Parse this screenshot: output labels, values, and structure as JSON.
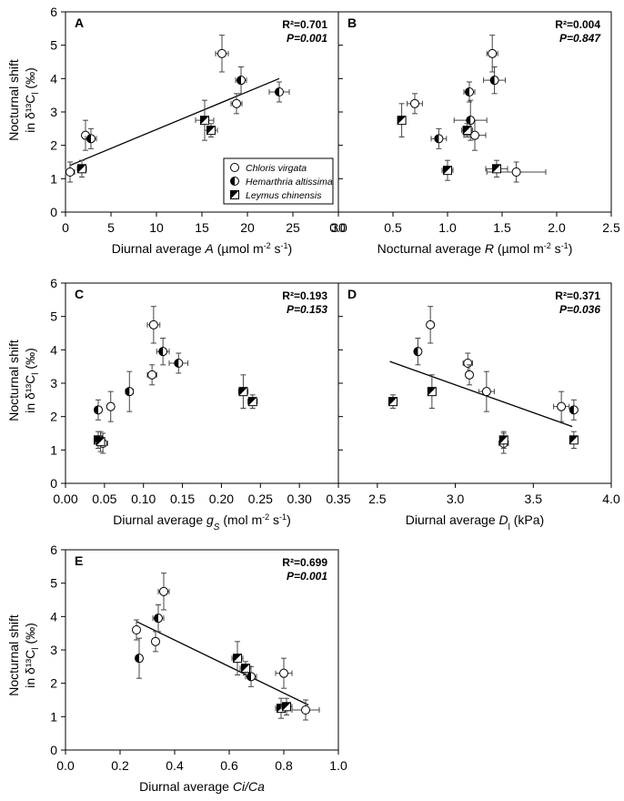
{
  "figure": {
    "legend": {
      "entries": [
        {
          "name": "Chloris virgata",
          "marker": "open-circle"
        },
        {
          "name": "Hemarthria altissima",
          "marker": "half-filled-circle"
        },
        {
          "name": "Leymus chinensis",
          "marker": "half-filled-square"
        }
      ]
    },
    "ylabel_line1": "Nocturnal shift",
    "ylabel_line2": "in δ¹³C",
    "ylabel_sub": "l",
    "ylabel_unit": " (‰)"
  },
  "chart_data": [
    {
      "panel": "A",
      "type": "scatter",
      "xlabel": "Diurnal average A (µmol m⁻² s⁻¹)",
      "xlim": [
        0,
        30
      ],
      "ylim": [
        0,
        6
      ],
      "xticks": [
        0,
        5,
        10,
        15,
        20,
        25,
        30
      ],
      "yticks": [
        0,
        1,
        2,
        3,
        4,
        5,
        6
      ],
      "stats": {
        "r2": "R²=0.701",
        "p": "P=0.001"
      },
      "regression": {
        "x": [
          0.5,
          23.5
        ],
        "y": [
          1.4,
          4.0
        ]
      },
      "points": [
        {
          "species": "Chloris virgata",
          "x": 0.5,
          "y": 1.2,
          "xerr": 0.5,
          "yerr": 0.3
        },
        {
          "species": "Chloris virgata",
          "x": 2.2,
          "y": 2.3,
          "xerr": 0.3,
          "yerr": 0.45
        },
        {
          "species": "Chloris virgata",
          "x": 17.2,
          "y": 4.75,
          "xerr": 0.7,
          "yerr": 0.55
        },
        {
          "species": "Chloris virgata",
          "x": 18.8,
          "y": 3.25,
          "xerr": 0.6,
          "yerr": 0.3
        },
        {
          "species": "Hemarthria altissima",
          "x": 2.8,
          "y": 2.2,
          "xerr": 0.6,
          "yerr": 0.3
        },
        {
          "species": "Hemarthria altissima",
          "x": 19.3,
          "y": 3.95,
          "xerr": 0.6,
          "yerr": 0.4
        },
        {
          "species": "Hemarthria altissima",
          "x": 23.5,
          "y": 3.6,
          "xerr": 1.1,
          "yerr": 0.3
        },
        {
          "species": "Leymus chinensis",
          "x": 1.8,
          "y": 1.3,
          "xerr": 0.5,
          "yerr": 0.25
        },
        {
          "species": "Leymus chinensis",
          "x": 15.3,
          "y": 2.75,
          "xerr": 1.0,
          "yerr": 0.6
        },
        {
          "species": "Leymus chinensis",
          "x": 16.0,
          "y": 2.45,
          "xerr": 0.7,
          "yerr": 0.2
        }
      ]
    },
    {
      "panel": "B",
      "type": "scatter",
      "xlabel": "Nocturnal average R (µmol m⁻² s⁻¹)",
      "xlim": [
        0,
        2.5
      ],
      "ylim": [
        0,
        6
      ],
      "xticks": [
        0.0,
        0.5,
        1.0,
        1.5,
        2.0,
        2.5
      ],
      "yticks": [
        0,
        1,
        2,
        3,
        4,
        5,
        6
      ],
      "stats": {
        "r2": "R²=0.004",
        "p": "P=0.847"
      },
      "regression": null,
      "points": [
        {
          "species": "Chloris virgata",
          "x": 0.7,
          "y": 3.25,
          "xerr": 0.07,
          "yerr": 0.3
        },
        {
          "species": "Chloris virgata",
          "x": 1.25,
          "y": 2.3,
          "xerr": 0.1,
          "yerr": 0.45
        },
        {
          "species": "Chloris virgata",
          "x": 1.41,
          "y": 4.75,
          "xerr": 0.05,
          "yerr": 0.55
        },
        {
          "species": "Chloris virgata",
          "x": 1.63,
          "y": 1.2,
          "xerr": 0.27,
          "yerr": 0.3
        },
        {
          "species": "Hemarthria altissima",
          "x": 0.92,
          "y": 2.2,
          "xerr": 0.07,
          "yerr": 0.3
        },
        {
          "species": "Hemarthria altissima",
          "x": 1.2,
          "y": 3.6,
          "xerr": 0.05,
          "yerr": 0.3
        },
        {
          "species": "Hemarthria altissima",
          "x": 1.21,
          "y": 2.75,
          "xerr": 0.15,
          "yerr": 0.6
        },
        {
          "species": "Hemarthria altissima",
          "x": 1.43,
          "y": 3.95,
          "xerr": 0.1,
          "yerr": 0.4
        },
        {
          "species": "Leymus chinensis",
          "x": 0.58,
          "y": 2.75,
          "xerr": 0.03,
          "yerr": 0.5
        },
        {
          "species": "Leymus chinensis",
          "x": 1.0,
          "y": 1.25,
          "xerr": 0.05,
          "yerr": 0.3
        },
        {
          "species": "Leymus chinensis",
          "x": 1.18,
          "y": 2.45,
          "xerr": 0.05,
          "yerr": 0.2
        },
        {
          "species": "Leymus chinensis",
          "x": 1.45,
          "y": 1.3,
          "xerr": 0.1,
          "yerr": 0.25
        }
      ]
    },
    {
      "panel": "C",
      "type": "scatter",
      "xlabel": "Diurnal average gs (mol m⁻² s⁻¹)",
      "xlim": [
        0,
        0.35
      ],
      "ylim": [
        0,
        6
      ],
      "xticks": [
        0.0,
        0.05,
        0.1,
        0.15,
        0.2,
        0.25,
        0.3,
        0.35
      ],
      "yticks": [
        0,
        1,
        2,
        3,
        4,
        5,
        6
      ],
      "stats": {
        "r2": "R²=0.193",
        "p": "P=0.153"
      },
      "regression": null,
      "points": [
        {
          "species": "Chloris virgata",
          "x": 0.048,
          "y": 1.2,
          "xerr": 0.006,
          "yerr": 0.3
        },
        {
          "species": "Chloris virgata",
          "x": 0.058,
          "y": 2.3,
          "xerr": 0.004,
          "yerr": 0.45
        },
        {
          "species": "Chloris virgata",
          "x": 0.111,
          "y": 3.25,
          "xerr": 0.006,
          "yerr": 0.3
        },
        {
          "species": "Chloris virgata",
          "x": 0.113,
          "y": 4.75,
          "xerr": 0.008,
          "yerr": 0.55
        },
        {
          "species": "Hemarthria altissima",
          "x": 0.042,
          "y": 2.2,
          "xerr": 0.003,
          "yerr": 0.3
        },
        {
          "species": "Hemarthria altissima",
          "x": 0.082,
          "y": 2.75,
          "xerr": 0.005,
          "yerr": 0.6
        },
        {
          "species": "Hemarthria altissima",
          "x": 0.125,
          "y": 3.95,
          "xerr": 0.008,
          "yerr": 0.4
        },
        {
          "species": "Hemarthria altissima",
          "x": 0.145,
          "y": 3.6,
          "xerr": 0.012,
          "yerr": 0.3
        },
        {
          "species": "Leymus chinensis",
          "x": 0.042,
          "y": 1.3,
          "xerr": 0.004,
          "yerr": 0.25
        },
        {
          "species": "Leymus chinensis",
          "x": 0.045,
          "y": 1.25,
          "xerr": 0.004,
          "yerr": 0.3
        },
        {
          "species": "Leymus chinensis",
          "x": 0.228,
          "y": 2.75,
          "xerr": 0.006,
          "yerr": 0.5
        },
        {
          "species": "Leymus chinensis",
          "x": 0.24,
          "y": 2.45,
          "xerr": 0.006,
          "yerr": 0.2
        }
      ]
    },
    {
      "panel": "D",
      "type": "scatter",
      "xlabel": "Diurnal average Dl (kPa)",
      "xlim": [
        2.25,
        4.0
      ],
      "ylim": [
        0,
        6
      ],
      "xticks": [
        2.5,
        3.0,
        3.5,
        4.0
      ],
      "yticks": [
        0,
        1,
        2,
        3,
        4,
        5,
        6
      ],
      "stats": {
        "r2": "R²=0.371",
        "p": "P=0.036"
      },
      "regression": {
        "x": [
          2.58,
          3.75
        ],
        "y": [
          3.65,
          1.7
        ]
      },
      "points": [
        {
          "species": "Chloris virgata",
          "x": 2.84,
          "y": 4.75,
          "xerr": 0.02,
          "yerr": 0.55
        },
        {
          "species": "Chloris virgata",
          "x": 3.08,
          "y": 3.6,
          "xerr": 0.03,
          "yerr": 0.3
        },
        {
          "species": "Chloris virgata",
          "x": 3.09,
          "y": 3.25,
          "xerr": 0.02,
          "yerr": 0.3
        },
        {
          "species": "Chloris virgata",
          "x": 3.2,
          "y": 2.75,
          "xerr": 0.05,
          "yerr": 0.6
        },
        {
          "species": "Chloris virgata",
          "x": 3.68,
          "y": 2.3,
          "xerr": 0.05,
          "yerr": 0.45
        },
        {
          "species": "Chloris virgata",
          "x": 3.31,
          "y": 1.2,
          "xerr": 0.03,
          "yerr": 0.3
        },
        {
          "species": "Hemarthria altissima",
          "x": 2.76,
          "y": 3.95,
          "xerr": 0.02,
          "yerr": 0.4
        },
        {
          "species": "Hemarthria altissima",
          "x": 3.76,
          "y": 2.2,
          "xerr": 0.02,
          "yerr": 0.3
        },
        {
          "species": "Leymus chinensis",
          "x": 2.6,
          "y": 2.45,
          "xerr": 0.02,
          "yerr": 0.2
        },
        {
          "species": "Leymus chinensis",
          "x": 2.85,
          "y": 2.75,
          "xerr": 0.02,
          "yerr": 0.5
        },
        {
          "species": "Leymus chinensis",
          "x": 3.31,
          "y": 1.3,
          "xerr": 0.02,
          "yerr": 0.25
        },
        {
          "species": "Leymus chinensis",
          "x": 3.76,
          "y": 1.3,
          "xerr": 0.02,
          "yerr": 0.25
        }
      ]
    },
    {
      "panel": "E",
      "type": "scatter",
      "xlabel": "Diurnal average Ci/Ca",
      "xlim": [
        0,
        1.0
      ],
      "ylim": [
        0,
        6
      ],
      "xticks": [
        0.0,
        0.2,
        0.4,
        0.6,
        0.8,
        1.0
      ],
      "yticks": [
        0,
        1,
        2,
        3,
        4,
        5,
        6
      ],
      "stats": {
        "r2": "R²=0.699",
        "p": "P=0.001"
      },
      "regression": {
        "x": [
          0.26,
          0.89
        ],
        "y": [
          3.85,
          1.35
        ]
      },
      "points": [
        {
          "species": "Chloris virgata",
          "x": 0.26,
          "y": 3.6,
          "xerr": 0.01,
          "yerr": 0.3
        },
        {
          "species": "Chloris virgata",
          "x": 0.33,
          "y": 3.25,
          "xerr": 0.01,
          "yerr": 0.3
        },
        {
          "species": "Chloris virgata",
          "x": 0.36,
          "y": 4.75,
          "xerr": 0.02,
          "yerr": 0.55
        },
        {
          "species": "Chloris virgata",
          "x": 0.8,
          "y": 2.3,
          "xerr": 0.03,
          "yerr": 0.45
        },
        {
          "species": "Chloris virgata",
          "x": 0.88,
          "y": 1.2,
          "xerr": 0.05,
          "yerr": 0.3
        },
        {
          "species": "Hemarthria altissima",
          "x": 0.27,
          "y": 2.75,
          "xerr": 0.01,
          "yerr": 0.6
        },
        {
          "species": "Hemarthria altissima",
          "x": 0.34,
          "y": 3.95,
          "xerr": 0.02,
          "yerr": 0.4
        },
        {
          "species": "Hemarthria altissima",
          "x": 0.68,
          "y": 2.2,
          "xerr": 0.02,
          "yerr": 0.3
        },
        {
          "species": "Leymus chinensis",
          "x": 0.63,
          "y": 2.75,
          "xerr": 0.02,
          "yerr": 0.5
        },
        {
          "species": "Leymus chinensis",
          "x": 0.66,
          "y": 2.45,
          "xerr": 0.02,
          "yerr": 0.2
        },
        {
          "species": "Leymus chinensis",
          "x": 0.79,
          "y": 1.25,
          "xerr": 0.02,
          "yerr": 0.3
        },
        {
          "species": "Leymus chinensis",
          "x": 0.81,
          "y": 1.3,
          "xerr": 0.02,
          "yerr": 0.25
        }
      ]
    }
  ]
}
